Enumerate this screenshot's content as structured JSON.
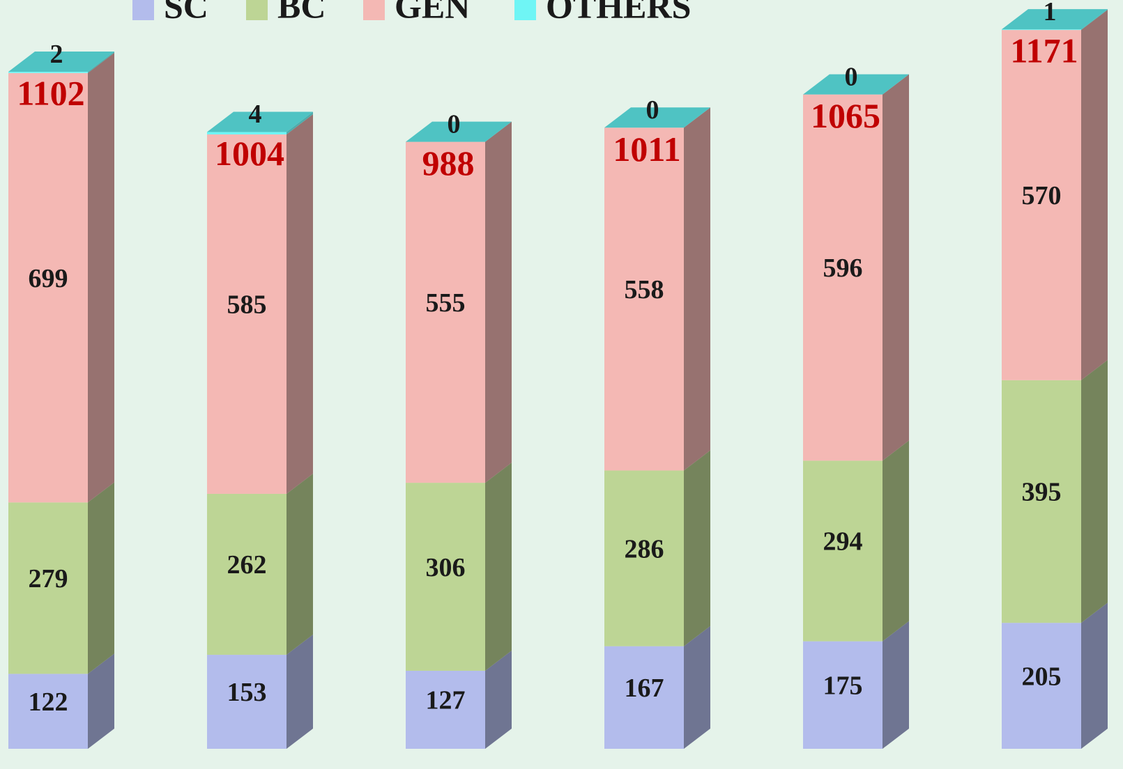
{
  "chart_data": {
    "type": "bar3d-stacked",
    "categories": [
      null,
      null,
      null,
      null,
      null,
      null
    ],
    "series": [
      {
        "name": "SC",
        "color": "#b3bcec",
        "values": [
          122,
          153,
          127,
          167,
          175,
          205
        ]
      },
      {
        "name": "BC",
        "color": "#bdd595",
        "values": [
          279,
          262,
          306,
          286,
          294,
          395
        ]
      },
      {
        "name": "GEN",
        "color": "#f4b8b4",
        "values": [
          699,
          585,
          555,
          558,
          596,
          570
        ]
      },
      {
        "name": "OTHERS",
        "color": "#6ff5f5",
        "values": [
          2,
          4,
          0,
          0,
          0,
          1
        ]
      }
    ],
    "totals": [
      1102,
      1004,
      988,
      1011,
      1065,
      1171
    ],
    "legend": "top"
  }
}
